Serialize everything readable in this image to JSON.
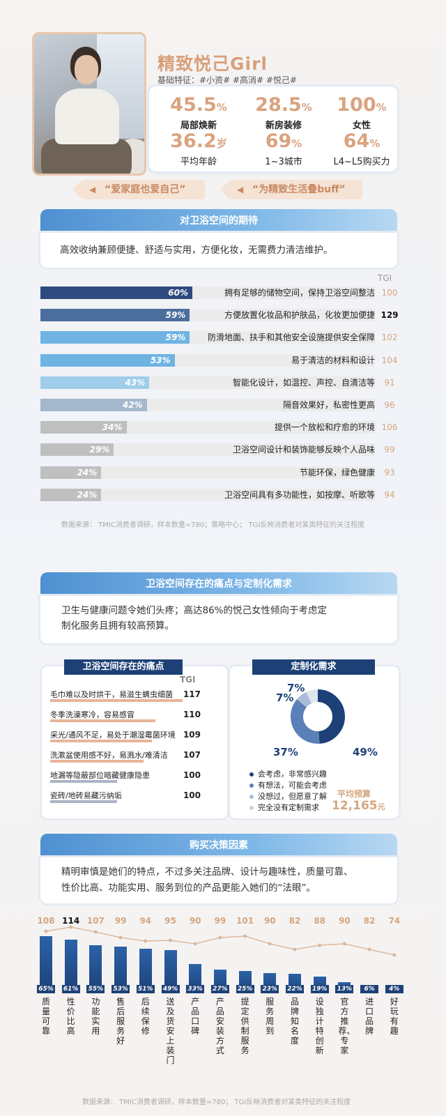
{
  "profile": {
    "title": "精致悦己Girl",
    "tags": "基础特征：#小资#   #高消#   #悦己#",
    "stats": [
      {
        "value": "45.5",
        "unit": "%",
        "label": "局部焕新"
      },
      {
        "value": "28.5",
        "unit": "%",
        "label": "新房装修"
      },
      {
        "value": "100",
        "unit": "%",
        "label": "女性"
      },
      {
        "value": "36.2",
        "unit": "岁",
        "label": "平均年龄"
      },
      {
        "value": "69",
        "unit": "%",
        "label": "1~3城市"
      },
      {
        "value": "64",
        "unit": "%",
        "label": "L4~L5购买力"
      }
    ],
    "quotes": [
      "“爱家庭也爱自己”",
      "“为精致生活叠buff”"
    ]
  },
  "section1": {
    "title": "对卫浴空间的期待",
    "summary": "高效收纳兼顾便捷、舒适与实用，方便化妆，无需费力清洁维护。",
    "tgi_label": "TGI"
  },
  "colors": {
    "bar_dark": "#2e4a7e",
    "bar_mid": "#4a6f9e",
    "bar_light": "#6fb3e3",
    "bar_pale": "#9fcdea",
    "bar_gray": "#bcbcbc",
    "accent": "#d9a37f",
    "navy": "#1d4177"
  },
  "chart_data": [
    {
      "type": "bar",
      "categories": [
        "拥有足够的储物空间，保持卫浴空间整洁",
        "方便放置化妆品和护肤品，化妆更加便捷",
        "防滑地面、扶手和其他安全设施提供安全保障",
        "易于清洁的材料和设计",
        "智能化设计，如温控、声控、自清洁等",
        "隔音效果好，私密性更高",
        "提供一个放松和疗愈的环境",
        "卫浴空间设计和装饰能够反映个人品味",
        "节能环保，绿色健康",
        "卫浴空间具有多功能性，如按摩、听歌等"
      ],
      "values": [
        60,
        59,
        59,
        53,
        43,
        42,
        34,
        29,
        24,
        24
      ],
      "tgi": [
        100,
        129,
        102,
        104,
        91,
        96,
        106,
        99,
        93,
        94
      ],
      "pct_labels": [
        "60%",
        "59%",
        "59%",
        "53%",
        "43%",
        "42%",
        "34%",
        "29%",
        "24%",
        "24%"
      ]
    },
    {
      "type": "bar",
      "title": "卫浴空间存在的痛点",
      "categories": [
        "毛巾难以及时烘干，易滋生螨虫细菌",
        "冬季洗澡寒冷，容易感冒",
        "采光/通风不足，易处于潮湿霉菌环境",
        "洗漱盆使用感不好，易溅水/难清洁",
        "地漏等隐蔽部位暗藏健康隐患",
        "瓷砖/地砖易藏污纳垢"
      ],
      "tgi": [
        117,
        110,
        109,
        107,
        100,
        100
      ]
    },
    {
      "type": "pie",
      "title": "定制化需求",
      "categories": [
        "会考虑，非常感兴趣",
        "有想法，可能会考虑",
        "没想过，但愿意了解",
        "完全没有定制需求"
      ],
      "values": [
        49,
        37,
        7,
        7
      ],
      "colors": [
        "#1d4177",
        "#5b80b8",
        "#a9bcd8",
        "#dfe5ee"
      ]
    },
    {
      "type": "bar",
      "title": "购买决策因素",
      "categories": [
        "质量可靠",
        "性价比高",
        "功能实用",
        "售后服务好",
        "后续保修",
        "送及货安上装门",
        "产品口碑",
        "产品安装方式",
        "提定供制服务",
        "服务周到",
        "品牌知名度",
        "设独计特创新",
        "官方推荐、专家",
        "进口品牌",
        "好玩有趣"
      ],
      "values": [
        65,
        61,
        55,
        53,
        51,
        49,
        33,
        27,
        25,
        23,
        22,
        19,
        13,
        6,
        4
      ],
      "tgi": [
        108,
        114,
        107,
        99,
        94,
        95,
        90,
        99,
        101,
        90,
        82,
        88,
        90,
        82,
        74
      ]
    }
  ],
  "budget": {
    "label": "平均预算",
    "value": "12,165",
    "unit": "元"
  },
  "section2": {
    "title": "卫浴空间存在的痛点与定制化需求",
    "summary_line1": "卫生与健康问题令她们头疼；高达86%的悦己女性倾向于考虑定",
    "summary_line2": "制化服务且拥有较高预算。",
    "pain_title": "卫浴空间存在的痛点",
    "custom_title": "定制化需求",
    "tgi_label": "TGI"
  },
  "section3": {
    "title": "购买决策因素",
    "summary_line1": "精明审慎是她们的特点，不过多关注品牌、设计与趣味性，质量可靠、",
    "summary_line2": "性价比高、功能实用、服务到位的产品更能入她们的“法眼”。"
  },
  "source1": "数据来源：  TMIC消费者调研，样本数量=780；策略中心；  TGI反映消费者对某类特征的关注程度",
  "source2": "数据来源：  TMIC消费者调研，样本数量=780；  TGI反映消费者对某类特征的关注程度"
}
